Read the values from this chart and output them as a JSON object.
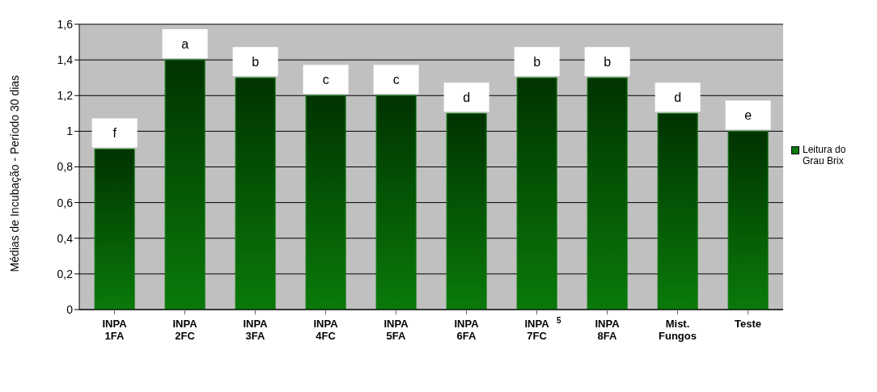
{
  "chart_data": {
    "type": "bar",
    "ylabel": "Médias de Incubação - Período 30 dias",
    "categories": [
      "INPA\n1FA",
      "INPA\n2FC",
      "INPA\n3FA",
      "INPA\n4FC",
      "INPA\n5FA",
      "INPA\n6FA",
      "INPA\n7FC",
      "INPA\n8FA",
      "Mist.\nFungos",
      "Teste"
    ],
    "series": [
      {
        "name": "Leitura do Grau Brix",
        "color": "#0a7a0a",
        "values": [
          0.9,
          1.4,
          1.3,
          1.2,
          1.2,
          1.1,
          1.3,
          1.3,
          1.1,
          1.0
        ]
      }
    ],
    "ylim": [
      0,
      1.6
    ],
    "yticks": [
      0,
      {
        "value": 0.2,
        "label": "0,2"
      },
      {
        "value": 0.4,
        "label": "0,4"
      },
      {
        "value": 0.6,
        "label": "0,6"
      },
      {
        "value": 0.8,
        "label": "0,8"
      },
      1,
      {
        "value": 1.2,
        "label": "1,2"
      },
      {
        "value": 1.4,
        "label": "1,4"
      },
      {
        "value": 1.6,
        "label": "1,6"
      }
    ],
    "grid": "y",
    "legend": "right",
    "annotations": [
      {
        "text": "f",
        "x": "INPA\n1FA",
        "y": 0.9
      },
      {
        "text": "a",
        "x": "INPA\n2FC",
        "y": 1.4
      },
      {
        "text": "b",
        "x": "INPA\n3FA",
        "y": 1.3
      },
      {
        "text": "c",
        "x": "INPA\n4FC",
        "y": 1.2
      },
      {
        "text": "c",
        "x": "INPA\n5FA",
        "y": 1.2
      },
      {
        "text": "d",
        "x": "INPA\n6FA",
        "y": 1.1
      },
      {
        "text": "b",
        "x": "INPA\n7FC",
        "y": 1.3
      },
      {
        "text": "b",
        "x": "INPA\n8FA",
        "y": 1.3
      },
      {
        "text": "d",
        "x": "Mist.\nFungos",
        "y": 1.1
      },
      {
        "text": "e",
        "x": "Teste",
        "y": 1.0
      },
      "5"
    ]
  }
}
